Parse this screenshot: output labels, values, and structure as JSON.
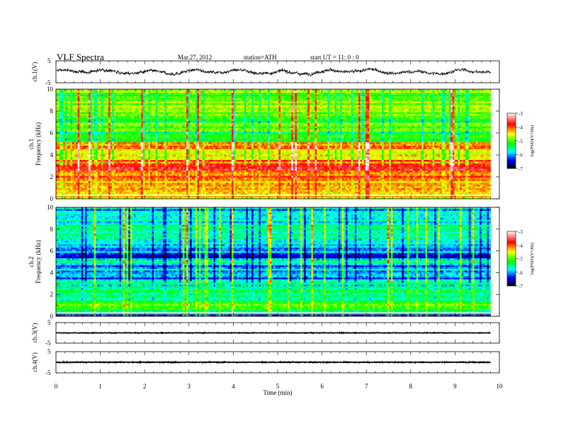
{
  "header": {
    "title": "VLF  Spectra",
    "date": "Mar.27, 2012",
    "station": "station=ATH",
    "start": "start  UT  =    11: 0  : 0"
  },
  "chart_data": [
    {
      "type": "line",
      "panel": "ch1-waveform",
      "ylabel": "ch.1(V)",
      "ylim": [
        -5,
        5
      ],
      "yticks": [
        "5",
        "-5"
      ],
      "xlim": [
        0,
        10
      ],
      "x_end": 9.8,
      "description_values": {
        "mean_level": 0.0,
        "amplitude_approx": 2.0
      },
      "color": "#000000"
    },
    {
      "type": "heatmap",
      "panel": "ch1-spectrogram",
      "ylabel_outer": "ch.1",
      "ylabel": "Frequency  (kHz)",
      "ylim": [
        0,
        10
      ],
      "yticks": [
        "0",
        "2",
        "4",
        "6",
        "8",
        "10"
      ],
      "xlim": [
        0,
        10
      ],
      "x_end": 9.8,
      "colorbar": {
        "label": "log(PSD)(V²/Hz)",
        "range": [
          -7,
          -3
        ],
        "ticks": [
          "-3",
          "-4",
          "-5",
          "-6",
          "-7"
        ]
      },
      "profile_log_psd": [
        {
          "f": 0.0,
          "v": -4.6
        },
        {
          "f": 0.5,
          "v": -4.3
        },
        {
          "f": 1.0,
          "v": -4.4
        },
        {
          "f": 1.5,
          "v": -4.3
        },
        {
          "f": 2.0,
          "v": -4.1
        },
        {
          "f": 2.5,
          "v": -3.8
        },
        {
          "f": 3.0,
          "v": -3.8
        },
        {
          "f": 3.5,
          "v": -4.2
        },
        {
          "f": 4.0,
          "v": -4.5
        },
        {
          "f": 4.5,
          "v": -4.3
        },
        {
          "f": 5.0,
          "v": -4.0
        },
        {
          "f": 5.3,
          "v": -5.1
        },
        {
          "f": 6.0,
          "v": -5.1
        },
        {
          "f": 6.5,
          "v": -5.0
        },
        {
          "f": 7.0,
          "v": -5.0
        },
        {
          "f": 8.0,
          "v": -4.9
        },
        {
          "f": 9.0,
          "v": -4.9
        },
        {
          "f": 10.0,
          "v": -4.9
        }
      ]
    },
    {
      "type": "heatmap",
      "panel": "ch2-spectrogram",
      "ylabel_outer": "ch.2",
      "ylabel": "Frequency  (kHz)",
      "ylim": [
        0,
        10
      ],
      "yticks": [
        "0",
        "2",
        "4",
        "6",
        "8",
        "10"
      ],
      "xlim": [
        0,
        10
      ],
      "x_end": 9.8,
      "colorbar": {
        "label": "log(PSD)(V²/Hz)",
        "range": [
          -7,
          -3
        ],
        "ticks": [
          "-3",
          "-4",
          "-5",
          "-6",
          "-7"
        ]
      },
      "profile_log_psd": [
        {
          "f": 0.0,
          "v": -6.3
        },
        {
          "f": 0.5,
          "v": -5.3
        },
        {
          "f": 1.0,
          "v": -5.0
        },
        {
          "f": 1.5,
          "v": -5.4
        },
        {
          "f": 2.0,
          "v": -5.4
        },
        {
          "f": 2.5,
          "v": -5.5
        },
        {
          "f": 3.0,
          "v": -5.6
        },
        {
          "f": 3.5,
          "v": -6.2
        },
        {
          "f": 4.0,
          "v": -5.8
        },
        {
          "f": 4.5,
          "v": -6.0
        },
        {
          "f": 5.0,
          "v": -5.8
        },
        {
          "f": 5.5,
          "v": -6.4
        },
        {
          "f": 6.0,
          "v": -5.8
        },
        {
          "f": 6.5,
          "v": -6.1
        },
        {
          "f": 7.0,
          "v": -5.5
        },
        {
          "f": 8.0,
          "v": -5.5
        },
        {
          "f": 9.0,
          "v": -5.7
        },
        {
          "f": 10.0,
          "v": -5.8
        }
      ]
    },
    {
      "type": "line",
      "panel": "ch3-waveform",
      "ylabel": "ch.3(V)",
      "ylim": [
        -5,
        5
      ],
      "yticks": [
        "5",
        "-5"
      ],
      "xlim": [
        0,
        10
      ],
      "x_end": 9.8,
      "description_values": {
        "mean_level": 0.0,
        "amplitude_approx": 0.15
      },
      "color": "#000000"
    },
    {
      "type": "line",
      "panel": "ch4-waveform",
      "ylabel": "ch.4(V)",
      "ylim": [
        -5,
        5
      ],
      "yticks": [
        "5",
        "-5"
      ],
      "xlim": [
        0,
        10
      ],
      "x_end": 9.8,
      "description_values": {
        "mean_level": 0.0,
        "amplitude_approx": 0.2
      },
      "color": "#000000"
    }
  ],
  "x_axis": {
    "label": "Time  (min)",
    "ticks": [
      "0",
      "1",
      "2",
      "3",
      "4",
      "5",
      "6",
      "7",
      "8",
      "9",
      "10"
    ]
  },
  "colormap": [
    "#000000",
    "#0000ff",
    "#00ffff",
    "#00ff00",
    "#ffff00",
    "#ff0000",
    "#ffffff"
  ]
}
